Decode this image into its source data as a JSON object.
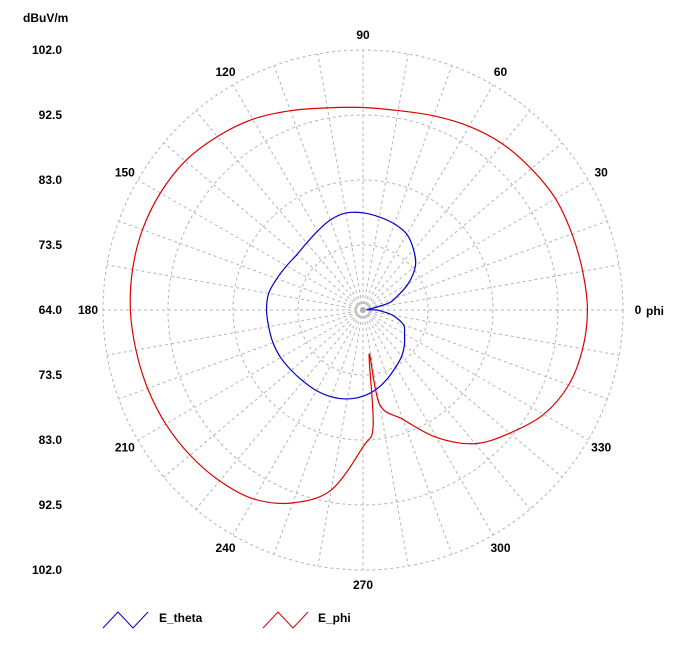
{
  "chart_data": {
    "type": "polar-line",
    "unit_label": "dBuV/m",
    "axis_label": "phi",
    "r_range": [
      64.0,
      102.0
    ],
    "radial_ticks_up": [
      "102.0",
      "92.5",
      "83.0",
      "73.5",
      "64.0"
    ],
    "radial_ticks_down": [
      "73.5",
      "83.0",
      "92.5",
      "102.0"
    ],
    "angle_labels": [
      "0",
      "30",
      "60",
      "90",
      "120",
      "150",
      "180",
      "210",
      "240",
      "270",
      "300",
      "330"
    ],
    "angle_values": [
      0,
      30,
      60,
      90,
      120,
      150,
      180,
      210,
      240,
      270,
      300,
      330
    ],
    "grid": true,
    "legend_position": "bottom",
    "series": [
      {
        "name": "E_theta",
        "color": "#0000cc",
        "points": [
          [
            0,
            66.0
          ],
          [
            5,
            64.6
          ],
          [
            10,
            65.3
          ],
          [
            15,
            67.8
          ],
          [
            20,
            69.0
          ],
          [
            30,
            71.6
          ],
          [
            40,
            74.0
          ],
          [
            50,
            75.5
          ],
          [
            60,
            76.8
          ],
          [
            70,
            77.4
          ],
          [
            80,
            77.8
          ],
          [
            90,
            78.2
          ],
          [
            100,
            78.4
          ],
          [
            110,
            78.0
          ],
          [
            120,
            77.3
          ],
          [
            130,
            76.8
          ],
          [
            140,
            76.6
          ],
          [
            150,
            76.9
          ],
          [
            160,
            77.4
          ],
          [
            170,
            78.0
          ],
          [
            180,
            78.1
          ],
          [
            190,
            78.0
          ],
          [
            200,
            78.0
          ],
          [
            210,
            77.9
          ],
          [
            220,
            77.7
          ],
          [
            230,
            77.6
          ],
          [
            240,
            77.6
          ],
          [
            250,
            77.5
          ],
          [
            260,
            77.2
          ],
          [
            270,
            76.6
          ],
          [
            280,
            75.7
          ],
          [
            290,
            74.6
          ],
          [
            300,
            73.6
          ],
          [
            310,
            72.8
          ],
          [
            320,
            71.9
          ],
          [
            330,
            71.0
          ],
          [
            340,
            70.3
          ],
          [
            350,
            68.4
          ],
          [
            355,
            67.0
          ]
        ]
      },
      {
        "name": "E_phi",
        "color": "#dd0000",
        "points": [
          [
            0,
            96.8
          ],
          [
            10,
            96.6
          ],
          [
            20,
            96.5
          ],
          [
            30,
            96.5
          ],
          [
            40,
            96.1
          ],
          [
            50,
            95.7
          ],
          [
            60,
            95.0
          ],
          [
            70,
            94.2
          ],
          [
            80,
            93.6
          ],
          [
            90,
            93.6
          ],
          [
            100,
            94.0
          ],
          [
            110,
            95.0
          ],
          [
            120,
            96.2
          ],
          [
            130,
            97.1
          ],
          [
            140,
            97.9
          ],
          [
            150,
            98.2
          ],
          [
            160,
            98.3
          ],
          [
            170,
            98.2
          ],
          [
            180,
            98.0
          ],
          [
            190,
            97.7
          ],
          [
            200,
            97.5
          ],
          [
            210,
            97.3
          ],
          [
            220,
            97.0
          ],
          [
            230,
            96.6
          ],
          [
            240,
            95.9
          ],
          [
            250,
            94.0
          ],
          [
            260,
            90.7
          ],
          [
            270,
            84.0
          ],
          [
            275,
            81.0
          ],
          [
            278,
            70.5
          ],
          [
            280,
            78.0
          ],
          [
            290,
            81.0
          ],
          [
            300,
            85.5
          ],
          [
            310,
            89.5
          ],
          [
            320,
            92.0
          ],
          [
            330,
            94.5
          ],
          [
            340,
            96.0
          ],
          [
            350,
            96.6
          ]
        ]
      }
    ]
  }
}
